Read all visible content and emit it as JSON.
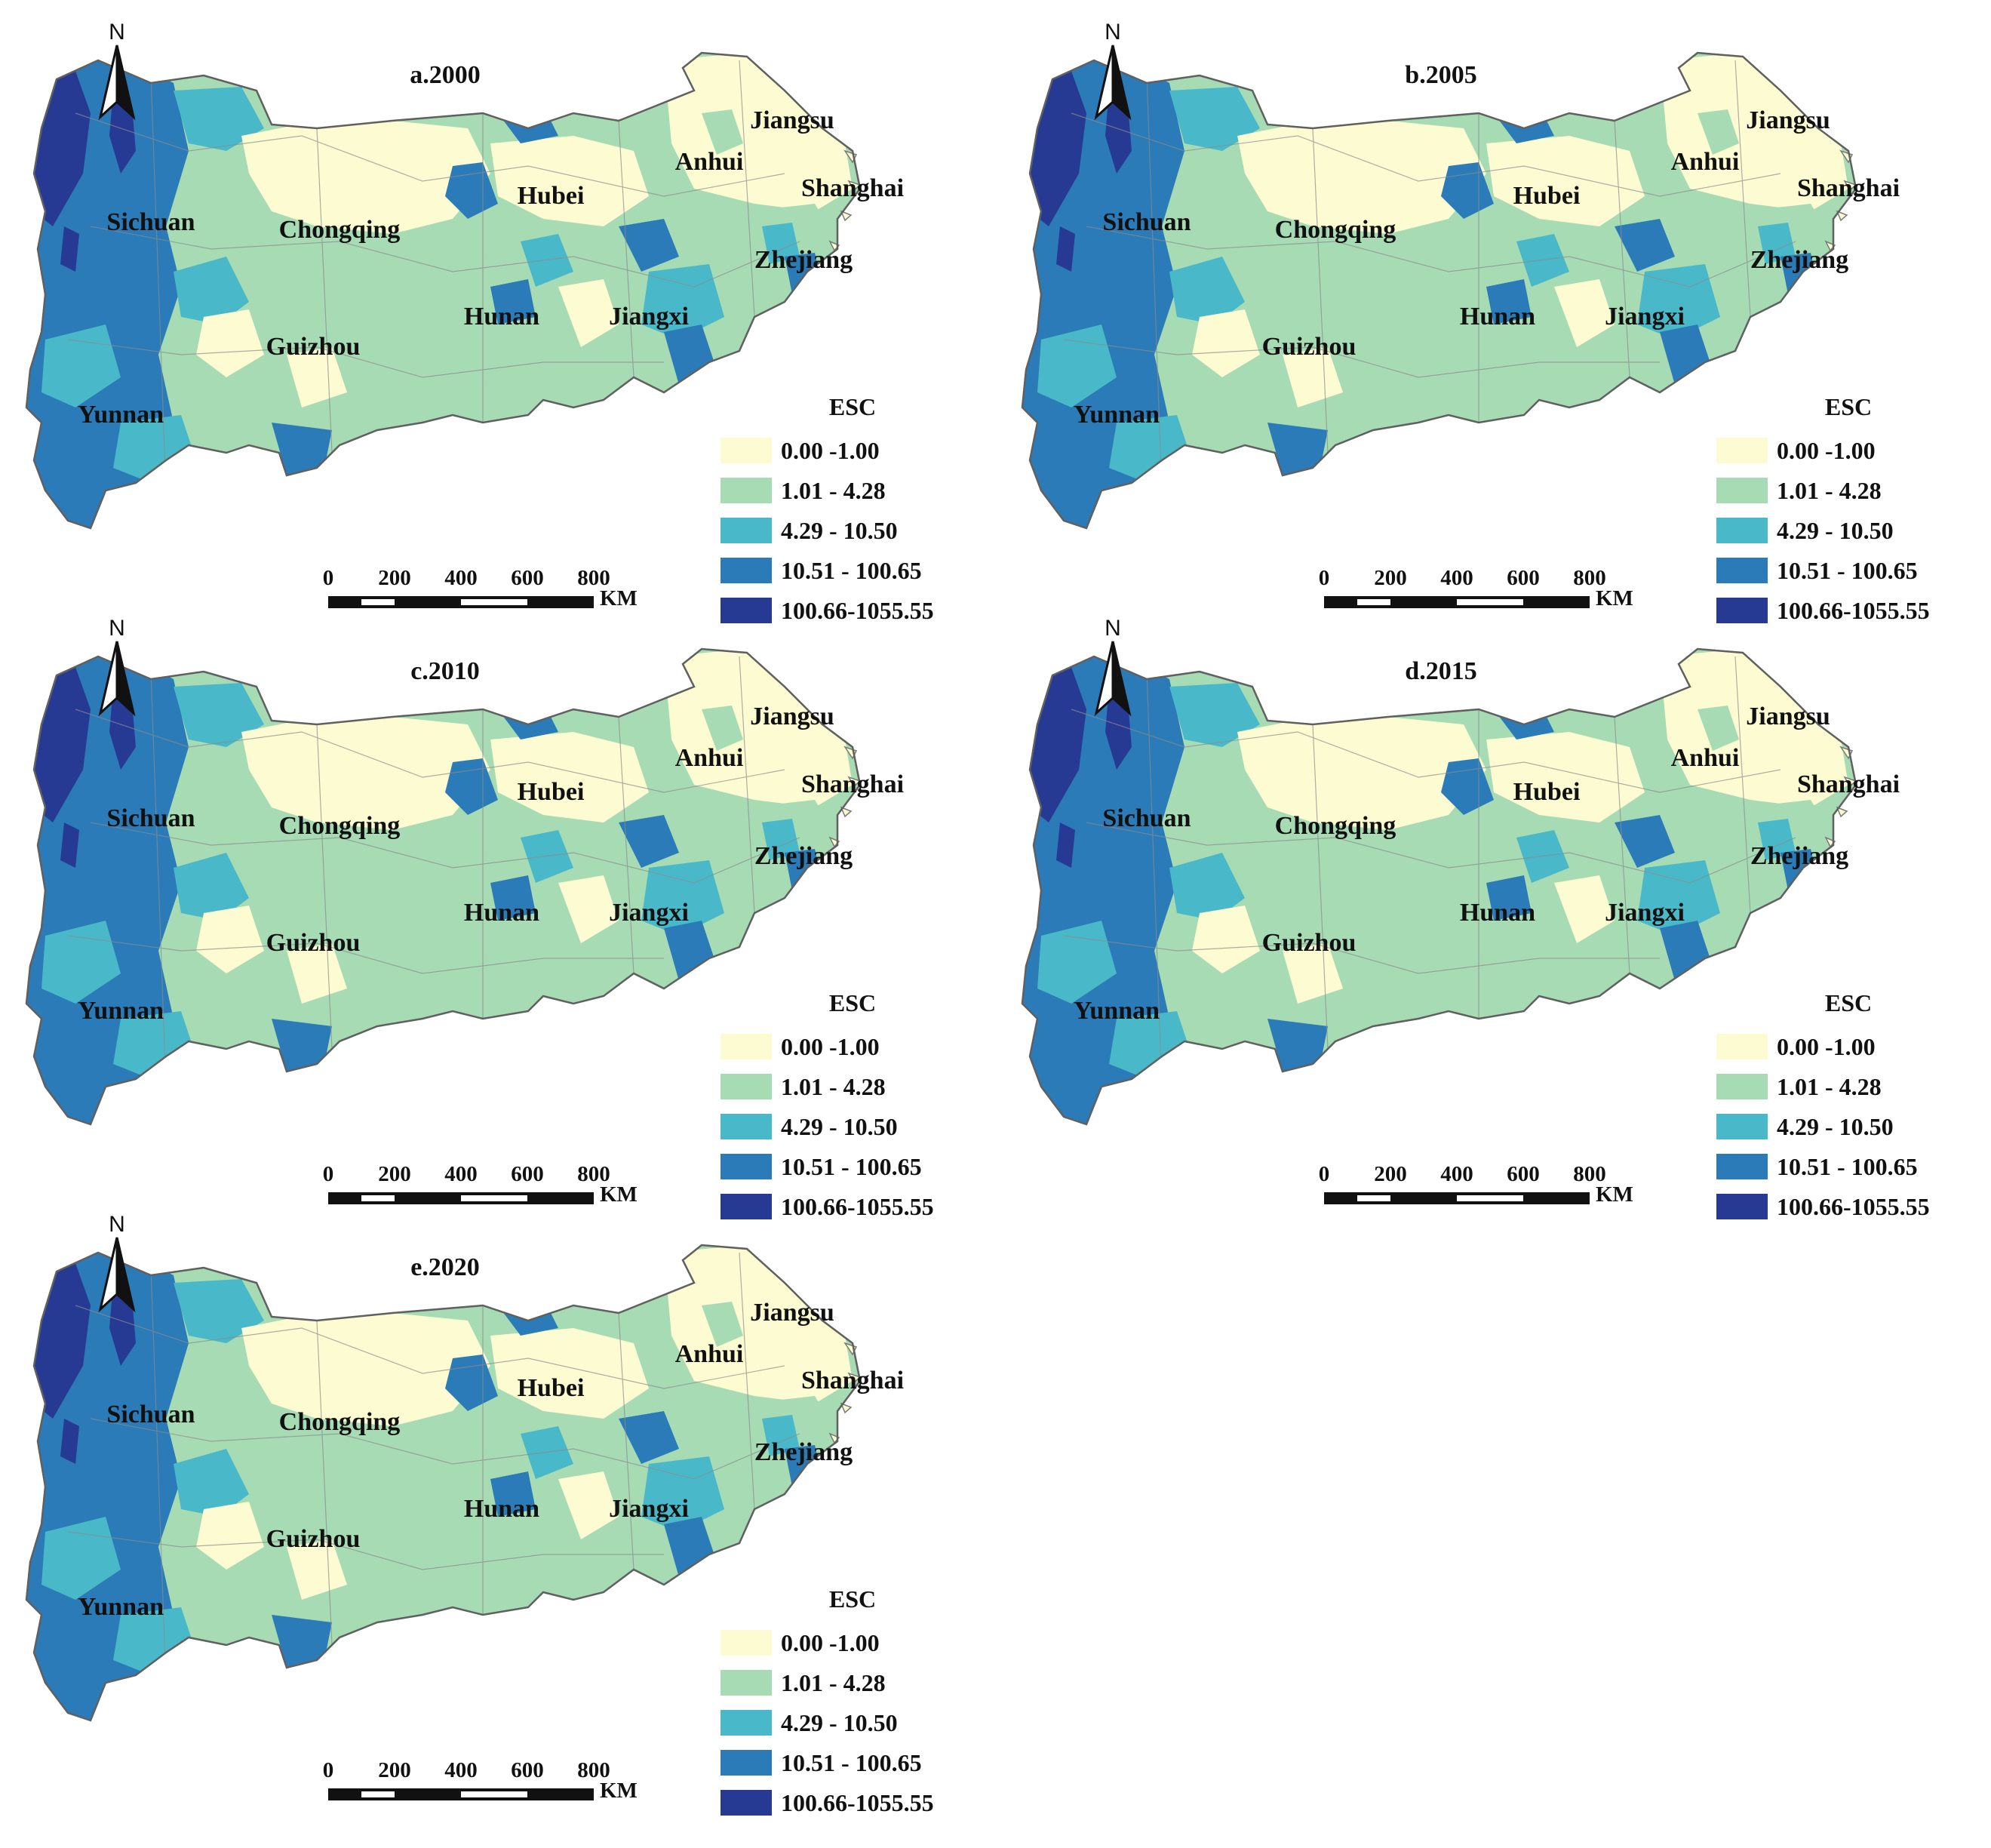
{
  "colors": {
    "class_0": "#fdfbd1",
    "class_1": "#a6dbb4",
    "class_2": "#49b8c9",
    "class_3": "#2b7bb8",
    "class_4": "#263a93",
    "boundary": "#8c8c8c",
    "text": "#111111"
  },
  "legend": {
    "title": "ESC",
    "classes": [
      {
        "label": "0.00 -1.00",
        "range": [
          0.0,
          1.0
        ],
        "color_key": "class_0"
      },
      {
        "label": "1.01  -  4.28",
        "range": [
          1.01,
          4.28
        ],
        "color_key": "class_1"
      },
      {
        "label": "4.29  -  10.50",
        "range": [
          4.29,
          10.5
        ],
        "color_key": "class_2"
      },
      {
        "label": "10.51 - 100.65",
        "range": [
          10.51,
          100.65
        ],
        "color_key": "class_3"
      },
      {
        "label": "100.66-1055.55",
        "range": [
          100.66,
          1055.55
        ],
        "color_key": "class_4"
      }
    ]
  },
  "scale_bar": {
    "ticks": [
      "0",
      "200",
      "400",
      "600",
      "800"
    ],
    "unit": "KM"
  },
  "north_arrow": {
    "label": "N",
    "icon": "north-arrow-icon"
  },
  "provinces": {
    "sichuan": "Sichuan",
    "chongqing": "Chongqing",
    "hubei": "Hubei",
    "anhui": "Anhui",
    "jiangsu": "Jiangsu",
    "shanghai": "Shanghai",
    "zhejiang": "Zhejiang",
    "hunan": "Hunan",
    "jiangxi": "Jiangxi",
    "guizhou": "Guizhou",
    "yunnan": "Yunnan"
  },
  "panels": [
    {
      "id": "a",
      "title": "a.2000",
      "year": 2000
    },
    {
      "id": "b",
      "title": "b.2005",
      "year": 2005
    },
    {
      "id": "c",
      "title": "c.2010",
      "year": 2010
    },
    {
      "id": "d",
      "title": "d.2015",
      "year": 2015
    },
    {
      "id": "e",
      "title": "e.2020",
      "year": 2020
    }
  ]
}
